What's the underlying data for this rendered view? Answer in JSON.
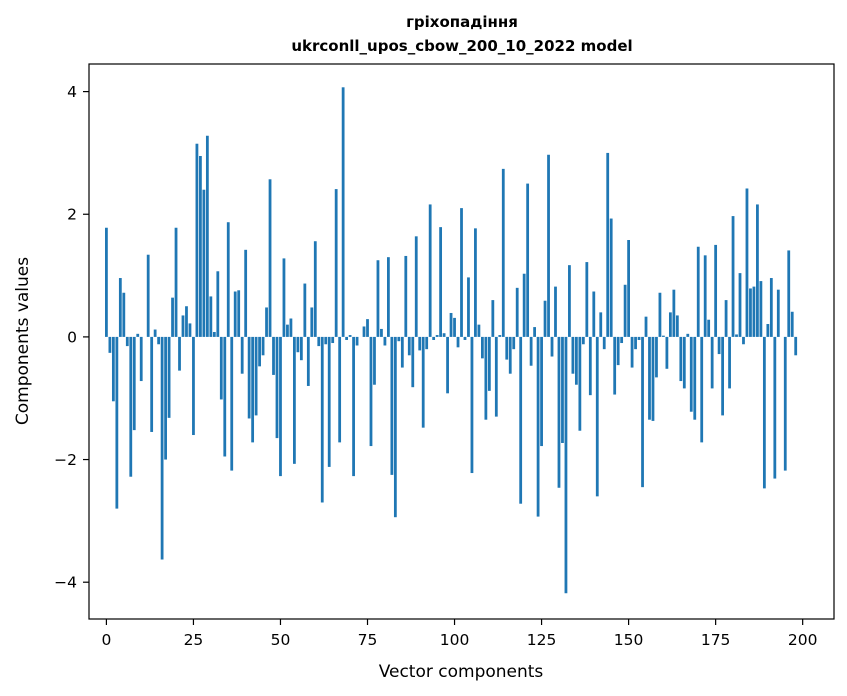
{
  "chart_data": {
    "type": "bar",
    "title": "гріхопадіння",
    "subtitle": "ukrconll_upos_cbow_200_10_2022 model",
    "xlabel": "Vector components",
    "ylabel": "Components values",
    "xlim": [
      -5,
      209
    ],
    "ylim": [
      -4.6,
      4.45
    ],
    "xticks": [
      0,
      25,
      50,
      75,
      100,
      125,
      150,
      175,
      200
    ],
    "yticks": [
      -4,
      -2,
      0,
      2,
      4
    ],
    "xtick_labels": [
      "0",
      "25",
      "50",
      "75",
      "100",
      "125",
      "150",
      "175",
      "200"
    ],
    "ytick_labels": [
      "−4",
      "−2",
      "0",
      "2",
      "4"
    ],
    "grid": false,
    "bar_color": "#1f77b4",
    "values": [
      1.78,
      -0.26,
      -1.05,
      -2.8,
      0.96,
      0.72,
      -0.15,
      -2.28,
      -1.52,
      0.05,
      -0.72,
      0.0,
      1.34,
      -1.55,
      0.12,
      -0.12,
      -3.63,
      -2.0,
      -1.32,
      0.64,
      1.78,
      -0.55,
      0.35,
      0.5,
      0.22,
      -1.6,
      3.15,
      2.95,
      2.4,
      3.28,
      0.66,
      0.08,
      1.07,
      -1.02,
      -1.95,
      1.87,
      -2.18,
      0.74,
      0.76,
      -0.6,
      1.42,
      -1.33,
      -1.72,
      -1.28,
      -0.48,
      -0.3,
      0.48,
      2.57,
      -0.62,
      -1.65,
      -2.27,
      1.28,
      0.2,
      0.3,
      -2.07,
      -0.25,
      -0.38,
      0.87,
      -0.8,
      0.48,
      1.56,
      -0.15,
      -2.7,
      -0.12,
      -2.12,
      -0.1,
      2.41,
      -1.72,
      4.07,
      -0.05,
      0.03,
      -2.27,
      -0.14,
      0.0,
      0.17,
      0.29,
      -1.78,
      -0.78,
      1.25,
      0.13,
      -0.14,
      1.3,
      -2.25,
      -2.94,
      -0.07,
      -0.5,
      1.32,
      -0.3,
      -0.82,
      1.64,
      -0.22,
      -1.48,
      -0.2,
      2.16,
      -0.05,
      0.03,
      1.79,
      0.06,
      -0.92,
      0.39,
      0.31,
      -0.17,
      2.1,
      -0.05,
      0.97,
      -2.22,
      1.77,
      0.2,
      -0.35,
      -1.35,
      -0.88,
      0.6,
      -1.3,
      0.03,
      2.74,
      -0.37,
      -0.6,
      -0.2,
      0.8,
      -2.72,
      1.03,
      2.5,
      -0.47,
      0.16,
      -2.93,
      -1.78,
      0.59,
      2.97,
      -0.32,
      0.82,
      -2.46,
      -1.73,
      -4.18,
      1.17,
      -0.6,
      -0.78,
      -1.53,
      -0.12,
      1.22,
      -0.95,
      0.74,
      -2.6,
      0.4,
      -0.2,
      3.0,
      1.93,
      -0.94,
      -0.46,
      -0.1,
      0.85,
      1.58,
      -0.5,
      -0.2,
      -0.05,
      -2.45,
      0.33,
      -1.35,
      -1.37,
      -0.66,
      0.72,
      0.02,
      -0.52,
      0.4,
      0.77,
      0.35,
      -0.72,
      -0.84,
      0.05,
      -1.22,
      -1.35,
      1.47,
      -1.72,
      1.33,
      0.28,
      -0.84,
      1.5,
      -0.28,
      -1.28,
      0.6,
      -0.84,
      1.97,
      0.04,
      1.04,
      -0.12,
      2.42,
      0.79,
      0.82,
      2.16,
      0.91,
      -2.47,
      0.21,
      0.96,
      -2.31,
      0.77,
      0.0,
      -2.18,
      1.41,
      0.41,
      -0.3
    ]
  }
}
